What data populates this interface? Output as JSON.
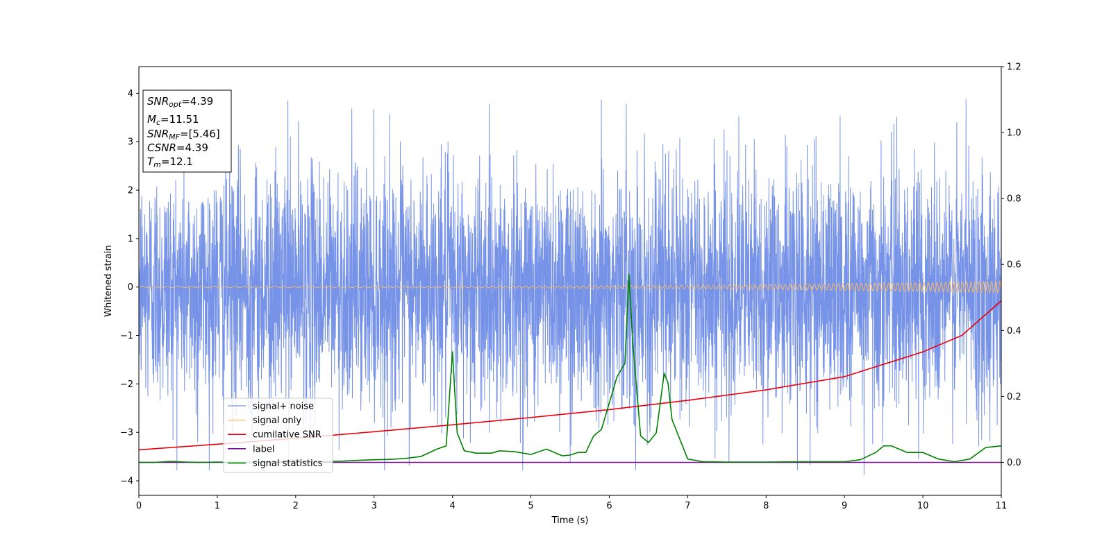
{
  "chart_data": {
    "type": "line",
    "title": "",
    "xlabel": "Time (s)",
    "ylabel": "Whitened strain",
    "xlim": [
      0,
      11
    ],
    "ylim": [
      -4.3,
      4.55
    ],
    "y2lim": [
      -0.1,
      1.2
    ],
    "grid": false,
    "legend_placement": "lower-left",
    "x_ticks": [
      "0",
      "1",
      "2",
      "3",
      "4",
      "5",
      "6",
      "7",
      "8",
      "9",
      "10",
      "11"
    ],
    "y_ticks": [
      "−4",
      "−3",
      "−2",
      "−1",
      "0",
      "1",
      "2",
      "3",
      "4"
    ],
    "y2_ticks": [
      "0.0",
      "0.2",
      "0.4",
      "0.6",
      "0.8",
      "1.0",
      "1.2"
    ],
    "info_box": {
      "snr_opt": "=4.39",
      "mc": "=11.51",
      "snr_mf": "=[5.46]",
      "csnr": "=4.39",
      "tm": "=12.1"
    },
    "series": [
      {
        "name": "signal+ noise",
        "axis": "left",
        "color": "#6b8ae6",
        "style": "noise",
        "envelope": {
          "typical_abs": 1.9,
          "max_peak": 3.9
        },
        "notable_peaks": [
          {
            "x": 1.9,
            "y": 3.85
          },
          {
            "x": 5.9,
            "y": 3.87
          },
          {
            "x": 10.55,
            "y": 3.88
          },
          {
            "x": 9.25,
            "y": -3.88
          },
          {
            "x": 8.4,
            "y": -3.78
          },
          {
            "x": 5.5,
            "y": -3.62
          },
          {
            "x": 0.75,
            "y": -3.2
          },
          {
            "x": 10.75,
            "y": -3.15
          }
        ]
      },
      {
        "name": "signal only",
        "axis": "left",
        "color": "#f5b86a",
        "style": "chirp",
        "amplitude_start": 0.01,
        "amplitude_end": 0.12
      },
      {
        "name": "cumilative SNR",
        "axis": "right",
        "color": "#e8000b",
        "x": [
          0,
          1,
          2,
          3,
          4,
          5,
          6,
          7,
          8,
          9,
          10,
          10.5,
          11
        ],
        "values": [
          0.038,
          0.055,
          0.073,
          0.093,
          0.114,
          0.136,
          0.16,
          0.188,
          0.22,
          0.26,
          0.335,
          0.385,
          0.49
        ]
      },
      {
        "name": "label",
        "axis": "right",
        "color": "#7b0c9e",
        "x": [
          0,
          11
        ],
        "values": [
          0.0,
          0.0
        ]
      },
      {
        "name": "signal statistics",
        "axis": "right",
        "color": "#008000",
        "x": [
          0,
          0.2,
          0.4,
          0.6,
          0.8,
          1.0,
          1.2,
          1.4,
          1.6,
          1.8,
          2.0,
          2.2,
          2.4,
          2.6,
          2.8,
          3.0,
          3.2,
          3.4,
          3.6,
          3.8,
          3.92,
          4.0,
          4.06,
          4.15,
          4.3,
          4.5,
          4.6,
          4.8,
          5.0,
          5.2,
          5.4,
          5.5,
          5.6,
          5.7,
          5.8,
          5.9,
          6.0,
          6.1,
          6.2,
          6.25,
          6.3,
          6.35,
          6.4,
          6.5,
          6.6,
          6.7,
          6.75,
          6.8,
          6.9,
          7.0,
          7.2,
          7.5,
          8.0,
          8.5,
          9.0,
          9.2,
          9.4,
          9.5,
          9.6,
          9.8,
          10.0,
          10.2,
          10.4,
          10.6,
          10.8,
          11.0
        ],
        "values": [
          0.0,
          0.0,
          0.003,
          0.001,
          0.0,
          0.001,
          0.0,
          0.0,
          0.0,
          0.003,
          0.005,
          0.002,
          0.003,
          0.004,
          0.006,
          0.008,
          0.009,
          0.012,
          0.018,
          0.04,
          0.05,
          0.335,
          0.09,
          0.035,
          0.028,
          0.028,
          0.035,
          0.032,
          0.024,
          0.04,
          0.02,
          0.022,
          0.03,
          0.03,
          0.08,
          0.1,
          0.18,
          0.26,
          0.3,
          0.57,
          0.36,
          0.22,
          0.08,
          0.06,
          0.09,
          0.27,
          0.24,
          0.13,
          0.07,
          0.01,
          0.002,
          0.001,
          0.001,
          0.002,
          0.002,
          0.008,
          0.03,
          0.05,
          0.05,
          0.03,
          0.03,
          0.01,
          0.002,
          0.01,
          0.045,
          0.05
        ]
      }
    ]
  }
}
